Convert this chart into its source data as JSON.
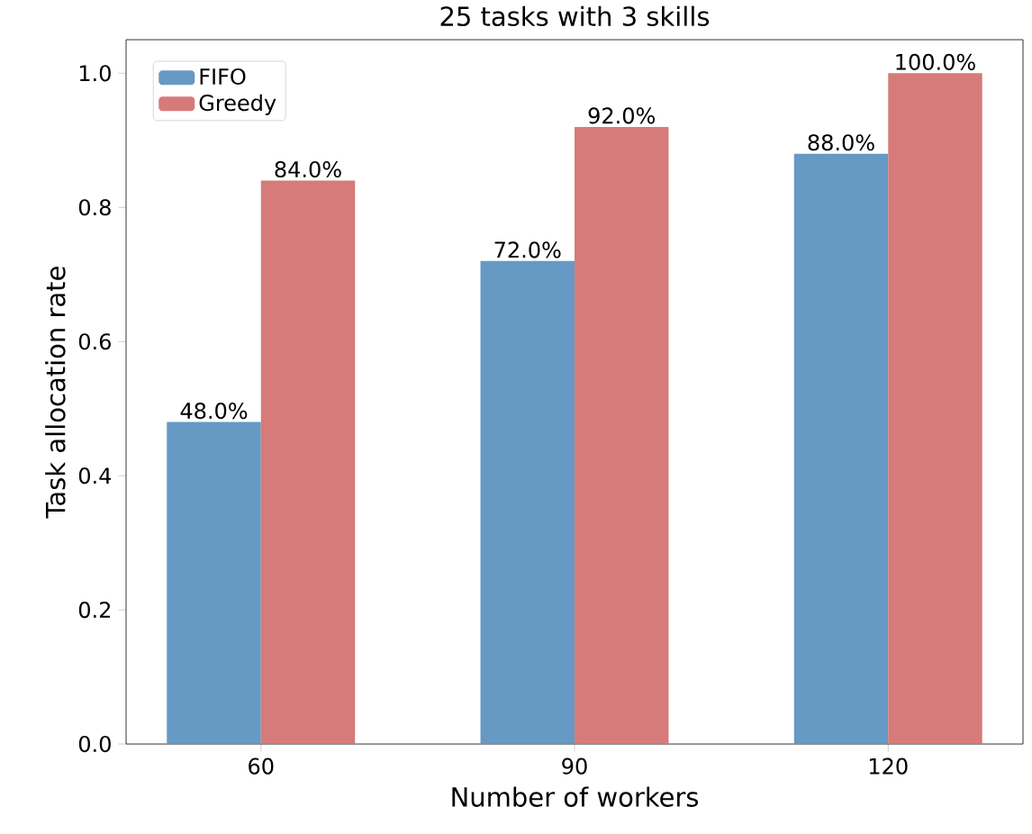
{
  "chart_data": {
    "type": "bar",
    "title": "25 tasks with 3 skills",
    "xlabel": "Number of workers",
    "ylabel": "Task allocation rate",
    "categories": [
      "60",
      "90",
      "120"
    ],
    "series": [
      {
        "name": "FIFO",
        "color": "#6699c4",
        "values": [
          0.48,
          0.72,
          0.88
        ],
        "value_labels": [
          "48.0%",
          "72.0%",
          "88.0%"
        ]
      },
      {
        "name": "Greedy",
        "color": "#d67b79",
        "values": [
          0.84,
          0.92,
          1.0
        ],
        "value_labels": [
          "84.0%",
          "92.0%",
          "100.0%"
        ]
      }
    ],
    "ylim": [
      0,
      1.05
    ],
    "yticks": [
      {
        "value": 0,
        "label": "0.0"
      },
      0.2,
      0.4,
      0.6,
      0.8,
      {
        "value": 1,
        "label": "1.0"
      }
    ],
    "legend": "top left",
    "grid": false
  }
}
